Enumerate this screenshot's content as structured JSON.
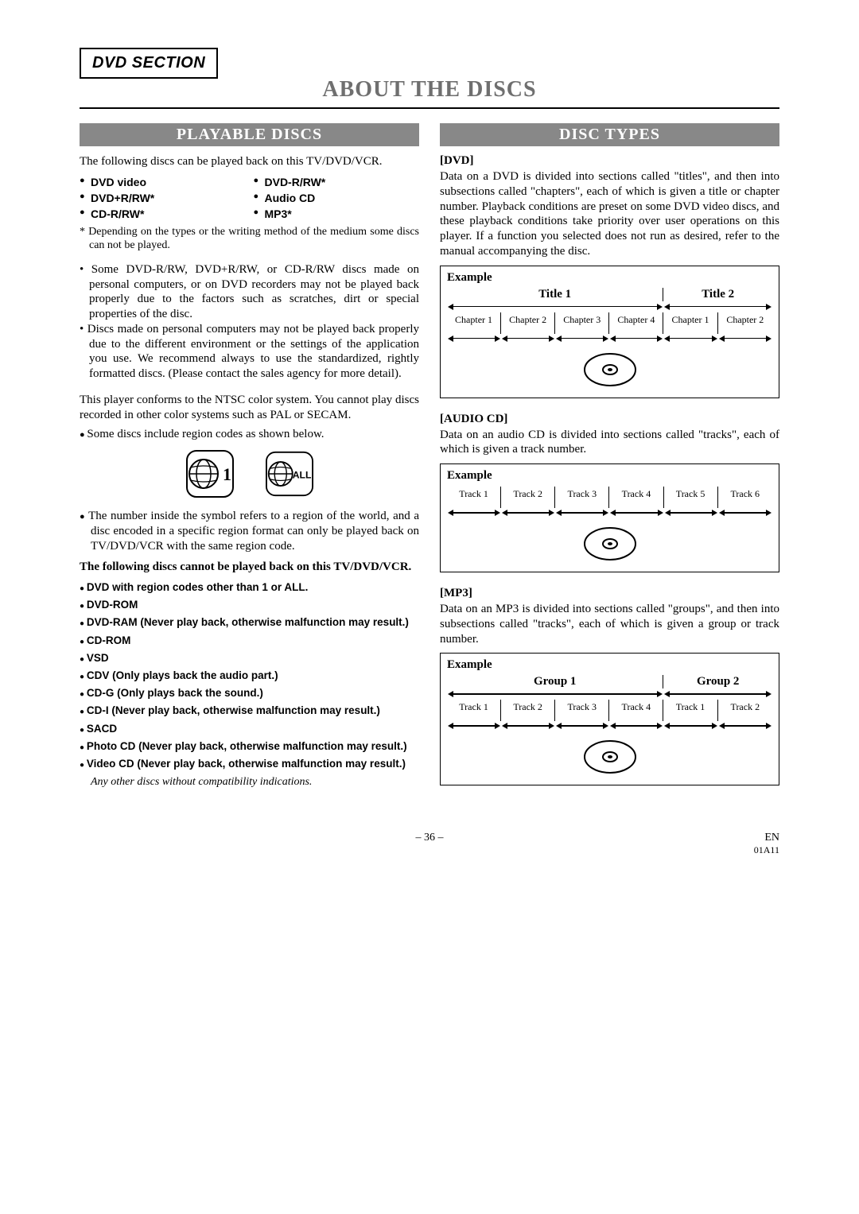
{
  "page": {
    "tab": "DVD SECTION",
    "title": "ABOUT THE DISCS",
    "number": "– 36 –",
    "lang": "EN",
    "code": "01A11"
  },
  "left": {
    "heading": "PLAYABLE DISCS",
    "intro": "The following discs can be played back on this TV/DVD/VCR.",
    "types": [
      "DVD video",
      "DVD-R/RW*",
      "DVD+R/RW*",
      "Audio CD",
      "CD-R/RW*",
      "MP3*"
    ],
    "asterisk": "* Depending on the types or the writing method of the medium some discs can not be played.",
    "caveats": [
      "Some DVD-R/RW, DVD+R/RW, or CD-R/RW discs made on personal computers, or on DVD recorders may not be played back properly due to the factors such as scratches, dirt or special properties of the disc.",
      "Discs made on personal computers may not be played back properly due to the different environment or the settings of the application you use. We recommend always to use the standardized, rightly formatted discs. (Please contact the sales agency for more detail)."
    ],
    "ntsc": "This player conforms to the NTSC color system. You cannot play discs recorded in other color systems such as PAL or SECAM.",
    "region_intro": "Some discs include region codes as shown below.",
    "globe1": "1",
    "globe2": "ALL",
    "region_expl": "The number inside the symbol refers to a region of the world, and a disc encoded in a specific region format can only be played back on TV/DVD/VCR with the same region code.",
    "cannot_heading": "The following discs cannot be played back on this TV/DVD/VCR.",
    "not_playable": [
      "DVD with region codes other than 1 or ALL.",
      "DVD-ROM",
      "DVD-RAM (Never play back, otherwise malfunction may result.)",
      "CD-ROM",
      "VSD",
      "CDV (Only plays back the audio part.)",
      "CD-G (Only plays back the sound.)",
      "CD-I (Never play back, otherwise malfunction may result.)",
      "SACD",
      "Photo CD (Never play back, otherwise malfunction may result.)",
      "Video CD (Never play back, otherwise malfunction may result.)"
    ],
    "any_other": "Any other discs without compatibility indications."
  },
  "right": {
    "heading": "DISC TYPES",
    "dvd": {
      "label": "[DVD]",
      "desc": "Data on a DVD is divided into sections called \"titles\", and then into subsections called \"chapters\", each of which is given a title or chapter number. Playback conditions are preset on some DVD video discs, and these playback conditions take priority over user operations on this player. If a function you selected does not run as desired, refer to the manual accompanying the disc.",
      "example": "Example",
      "titles": [
        "Title 1",
        "Title 2"
      ],
      "title_widths": [
        66.6,
        33.4
      ],
      "chapters": [
        "Chapter 1",
        "Chapter 2",
        "Chapter 3",
        "Chapter 4",
        "Chapter 1",
        "Chapter 2"
      ],
      "chapter_widths": [
        16.65,
        16.65,
        16.65,
        16.65,
        16.7,
        16.7
      ]
    },
    "audio": {
      "label": "[AUDIO CD]",
      "desc": "Data on an audio CD is divided into sections called \"tracks\", each of which is given a track number.",
      "example": "Example",
      "tracks": [
        "Track 1",
        "Track 2",
        "Track 3",
        "Track 4",
        "Track 5",
        "Track 6"
      ],
      "track_widths": [
        16.66,
        16.66,
        16.66,
        16.66,
        16.66,
        16.7
      ]
    },
    "mp3": {
      "label": "[MP3]",
      "desc": "Data on an MP3 is divided into sections called \"groups\", and then into subsections called \"tracks\", each of which is given a group or track number.",
      "example": "Example",
      "groups": [
        "Group 1",
        "Group 2"
      ],
      "group_widths": [
        66.6,
        33.4
      ],
      "tracks": [
        "Track 1",
        "Track 2",
        "Track 3",
        "Track 4",
        "Track 1",
        "Track 2"
      ],
      "track_widths": [
        16.65,
        16.65,
        16.65,
        16.65,
        16.7,
        16.7
      ]
    }
  },
  "colors": {
    "section_bar_bg": "#888888",
    "section_bar_fg": "#ffffff",
    "title_fg": "#6f6f6f",
    "text": "#000000",
    "background": "#ffffff"
  }
}
